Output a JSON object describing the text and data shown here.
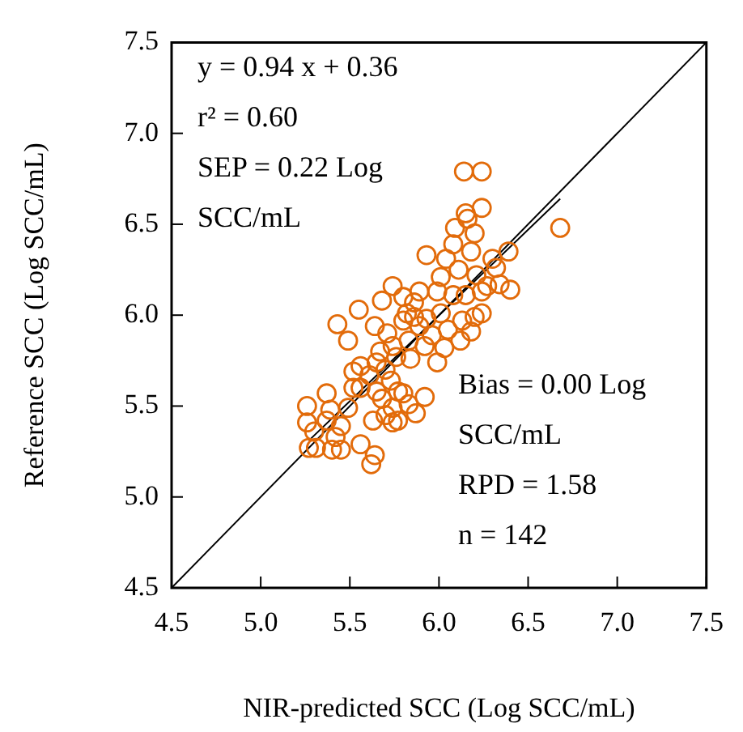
{
  "chart_data": {
    "type": "scatter",
    "xlabel": "NIR-predicted SCC (Log SCC/mL)",
    "ylabel": "Reference SCC (Log SCC/mL)",
    "xlim": [
      4.5,
      7.5
    ],
    "xticks": [
      4.5,
      {
        "value": 5,
        "label": "5.0"
      },
      5.5,
      {
        "value": 6,
        "label": "6.0"
      },
      6.5,
      {
        "value": 7,
        "label": "7.0"
      },
      7.5
    ],
    "ylim": [
      4.5,
      7.5
    ],
    "yticks": [
      4.5,
      {
        "value": 5,
        "label": "5.0"
      },
      5.5,
      {
        "value": 6,
        "label": "6.0"
      },
      6.5,
      {
        "value": 7,
        "label": "7.0"
      },
      7.5
    ],
    "grid": false,
    "legend": false,
    "annotations": [
      "y = 0.94 x + 0.36",
      "r² = 0.60",
      "SEP = 0.22 Log SCC/mL",
      "Bias = 0.00 Log SCC/mL",
      "RPD = 1.58",
      "n = 142"
    ],
    "series": [
      {
        "color": "#e26b0a",
        "marker": "circle",
        "x": [
          6.14,
          6.24,
          6.24,
          6.15,
          6.16,
          6.68,
          6.09,
          6.2,
          6.08,
          6.18,
          6.39,
          5.93,
          6.04,
          6.11,
          6.3,
          6.32,
          6.21,
          6.27,
          6.4,
          6.34,
          5.74,
          5.89,
          5.99,
          5.68,
          5.8,
          6.08,
          6.15,
          6.24,
          6.2,
          6.13,
          6.01,
          5.93,
          5.86,
          5.82,
          5.55,
          5.43,
          5.64,
          5.49,
          5.89,
          6.05,
          6.18,
          5.96,
          5.83,
          5.74,
          5.92,
          6.03,
          5.67,
          5.99,
          5.84,
          5.76,
          5.65,
          5.56,
          5.7,
          5.61,
          5.73,
          5.56,
          5.52,
          5.65,
          5.77,
          5.8,
          5.92,
          5.68,
          5.83,
          5.74,
          5.7,
          5.77,
          5.74,
          5.87,
          5.37,
          5.26,
          5.26,
          5.39,
          5.49,
          5.37,
          5.45,
          5.3,
          5.42,
          5.27,
          5.31,
          5.4,
          5.45,
          5.56,
          5.64,
          5.62,
          5.63,
          5.52,
          6.12,
          6.24,
          6.01,
          5.86,
          5.8,
          5.71
        ],
        "values": [
          6.79,
          6.79,
          6.59,
          6.56,
          6.53,
          6.48,
          6.48,
          6.45,
          6.39,
          6.35,
          6.35,
          6.33,
          6.31,
          6.25,
          6.31,
          6.26,
          6.22,
          6.16,
          6.14,
          6.17,
          6.16,
          6.13,
          6.13,
          6.08,
          6.1,
          6.11,
          6.11,
          6.01,
          5.99,
          5.97,
          6.01,
          5.98,
          5.99,
          6.01,
          6.03,
          5.95,
          5.94,
          5.86,
          5.94,
          5.92,
          5.91,
          5.89,
          5.86,
          5.83,
          5.83,
          5.82,
          5.8,
          5.74,
          5.76,
          5.77,
          5.74,
          5.72,
          5.7,
          5.67,
          5.64,
          5.6,
          5.6,
          5.58,
          5.58,
          5.57,
          5.55,
          5.54,
          5.51,
          5.49,
          5.45,
          5.42,
          5.41,
          5.46,
          5.57,
          5.5,
          5.41,
          5.48,
          5.49,
          5.42,
          5.39,
          5.36,
          5.33,
          5.27,
          5.27,
          5.26,
          5.26,
          5.29,
          5.23,
          5.18,
          5.42,
          5.69,
          5.86,
          6.13,
          6.21,
          6.07,
          5.97,
          5.9
        ]
      },
      {
        "type": "line",
        "color": "#000000",
        "marker": "none",
        "x": [
          4.5,
          7.5
        ],
        "values": [
          4.5,
          7.5
        ]
      },
      {
        "type": "line",
        "color": "#000000",
        "marker": "none",
        "x": [
          5.27,
          6.68
        ],
        "values": [
          5.31,
          6.64
        ]
      }
    ]
  }
}
